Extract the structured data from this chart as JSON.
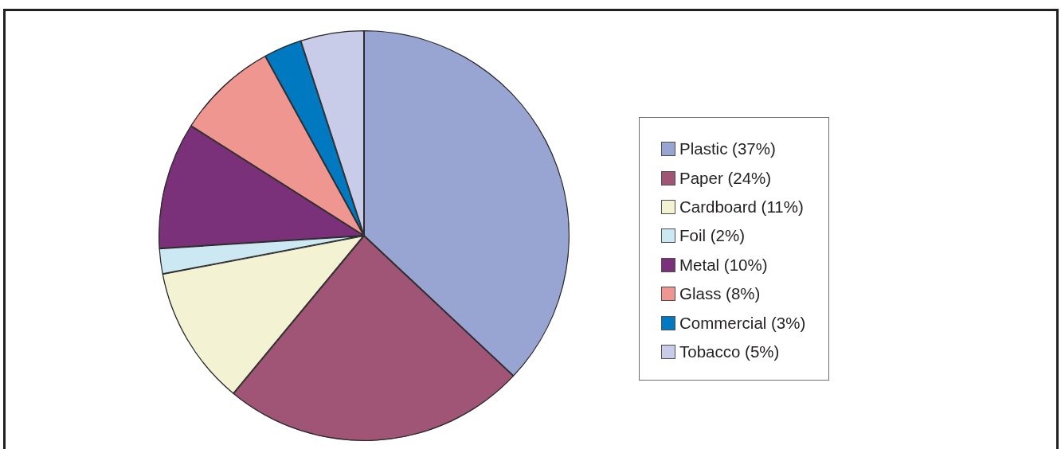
{
  "chart_data": {
    "type": "pie",
    "categories": [
      "Plastic (37%)",
      "Paper (24%)",
      "Cardboard (11%)",
      "Foil (2%)",
      "Metal (10%)",
      "Glass (8%)",
      "Commercial (3%)",
      "Tobacco (5%)"
    ],
    "values": [
      37,
      24,
      11,
      2,
      10,
      8,
      3,
      5
    ],
    "colors": [
      "#98a4d2",
      "#a05577",
      "#f3f2d3",
      "#cbe8f3",
      "#7b317a",
      "#ef9690",
      "#0079c1",
      "#c8cce8"
    ],
    "legend": "right"
  }
}
